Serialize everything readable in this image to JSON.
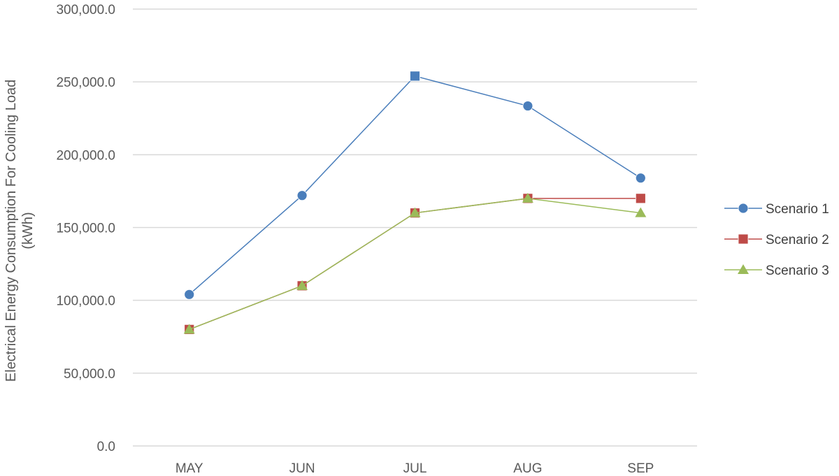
{
  "chart_data": {
    "type": "line",
    "title": "",
    "xlabel": "",
    "ylabel": "Electrical Energy Consumption For Cooling Load",
    "ylabel_unit": "(kWh)",
    "categories": [
      "MAY",
      "JUN",
      "JUL",
      "AUG",
      "SEP"
    ],
    "ylim": [
      0,
      300000
    ],
    "yticks": [
      0,
      50000,
      100000,
      150000,
      200000,
      250000,
      300000
    ],
    "ytick_labels": [
      "0.0",
      "50,000.0",
      "100,000.0",
      "150,000.0",
      "200,000.0",
      "250,000.0",
      "300,000.0"
    ],
    "grid": true,
    "legend": "right",
    "series": [
      {
        "name": "Scenario 1",
        "values": [
          104000,
          172000,
          254000,
          233500,
          184000
        ],
        "color": "#4a7ebb",
        "marker": "circle",
        "marker_overrides": {
          "2": "square"
        }
      },
      {
        "name": "Scenario 2",
        "values": [
          80000,
          110000,
          160000,
          170000,
          170000
        ],
        "color": "#be4b48",
        "marker": "square"
      },
      {
        "name": "Scenario 3",
        "values": [
          80000,
          110000,
          160000,
          170000,
          160000
        ],
        "color": "#9bbb59",
        "marker": "triangle"
      }
    ]
  }
}
